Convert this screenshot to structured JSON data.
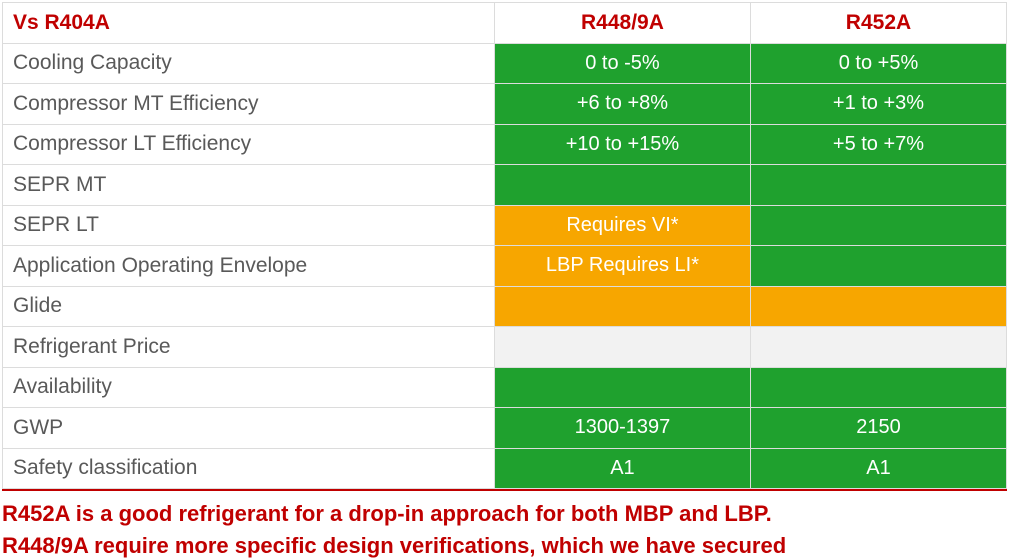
{
  "colors": {
    "header_text": "#c00000",
    "label_text": "#595959",
    "cell_text": "#ffffff",
    "border": "#dcdcdc",
    "green": "#1fa12e",
    "orange": "#f7a600",
    "red": "#c00000",
    "neutral": "#f2f2f2",
    "blank": "#ffffff",
    "footer_rule": "#c00000"
  },
  "headers": {
    "row_label": "Vs R404A",
    "col1": "R448/9A",
    "col2": "R452A"
  },
  "rows": [
    {
      "label": "Cooling Capacity",
      "c1": {
        "text": "0 to -5%",
        "bg": "#1fa12e"
      },
      "c2": {
        "text": "0 to +5%",
        "bg": "#1fa12e"
      }
    },
    {
      "label": "Compressor MT Efficiency",
      "c1": {
        "text": "+6 to +8%",
        "bg": "#1fa12e"
      },
      "c2": {
        "text": "+1 to +3%",
        "bg": "#1fa12e"
      }
    },
    {
      "label": "Compressor LT Efficiency",
      "c1": {
        "text": "+10 to +15%",
        "bg": "#1fa12e"
      },
      "c2": {
        "text": "+5 to +7%",
        "bg": "#1fa12e"
      }
    },
    {
      "label": "SEPR MT",
      "c1": {
        "text": "",
        "bg": "#1fa12e"
      },
      "c2": {
        "text": "",
        "bg": "#1fa12e"
      }
    },
    {
      "label": "SEPR LT",
      "c1": {
        "text": "Requires VI*",
        "bg": "#f7a600"
      },
      "c2": {
        "text": "",
        "bg": "#1fa12e"
      }
    },
    {
      "label": "Application Operating Envelope",
      "c1": {
        "text": "LBP Requires LI*",
        "bg": "#f7a600"
      },
      "c2": {
        "text": "",
        "bg": "#1fa12e"
      }
    },
    {
      "label": "Glide",
      "c1": {
        "text": "",
        "bg": "#f7a600"
      },
      "c2": {
        "text": "",
        "bg": "#f7a600"
      }
    },
    {
      "label": "Refrigerant Price",
      "c1": {
        "text": "",
        "bg": "#f2f2f2"
      },
      "c2": {
        "text": "",
        "bg": "#f2f2f2"
      }
    },
    {
      "label": "Availability",
      "c1": {
        "text": "",
        "bg": "#1fa12e"
      },
      "c2": {
        "text": "",
        "bg": "#1fa12e"
      }
    },
    {
      "label": "GWP",
      "c1": {
        "text": "1300-1397",
        "bg": "#1fa12e"
      },
      "c2": {
        "text": "2150",
        "bg": "#1fa12e"
      }
    },
    {
      "label": "Safety classification",
      "c1": {
        "text": "A1",
        "bg": "#1fa12e"
      },
      "c2": {
        "text": "A1",
        "bg": "#1fa12e"
      }
    }
  ],
  "footer": {
    "line1": "R452A is a good refrigerant for a drop-in approach for both MBP and LBP.",
    "line2": "R448/9A require more specific design verifications, which we have  secured"
  }
}
